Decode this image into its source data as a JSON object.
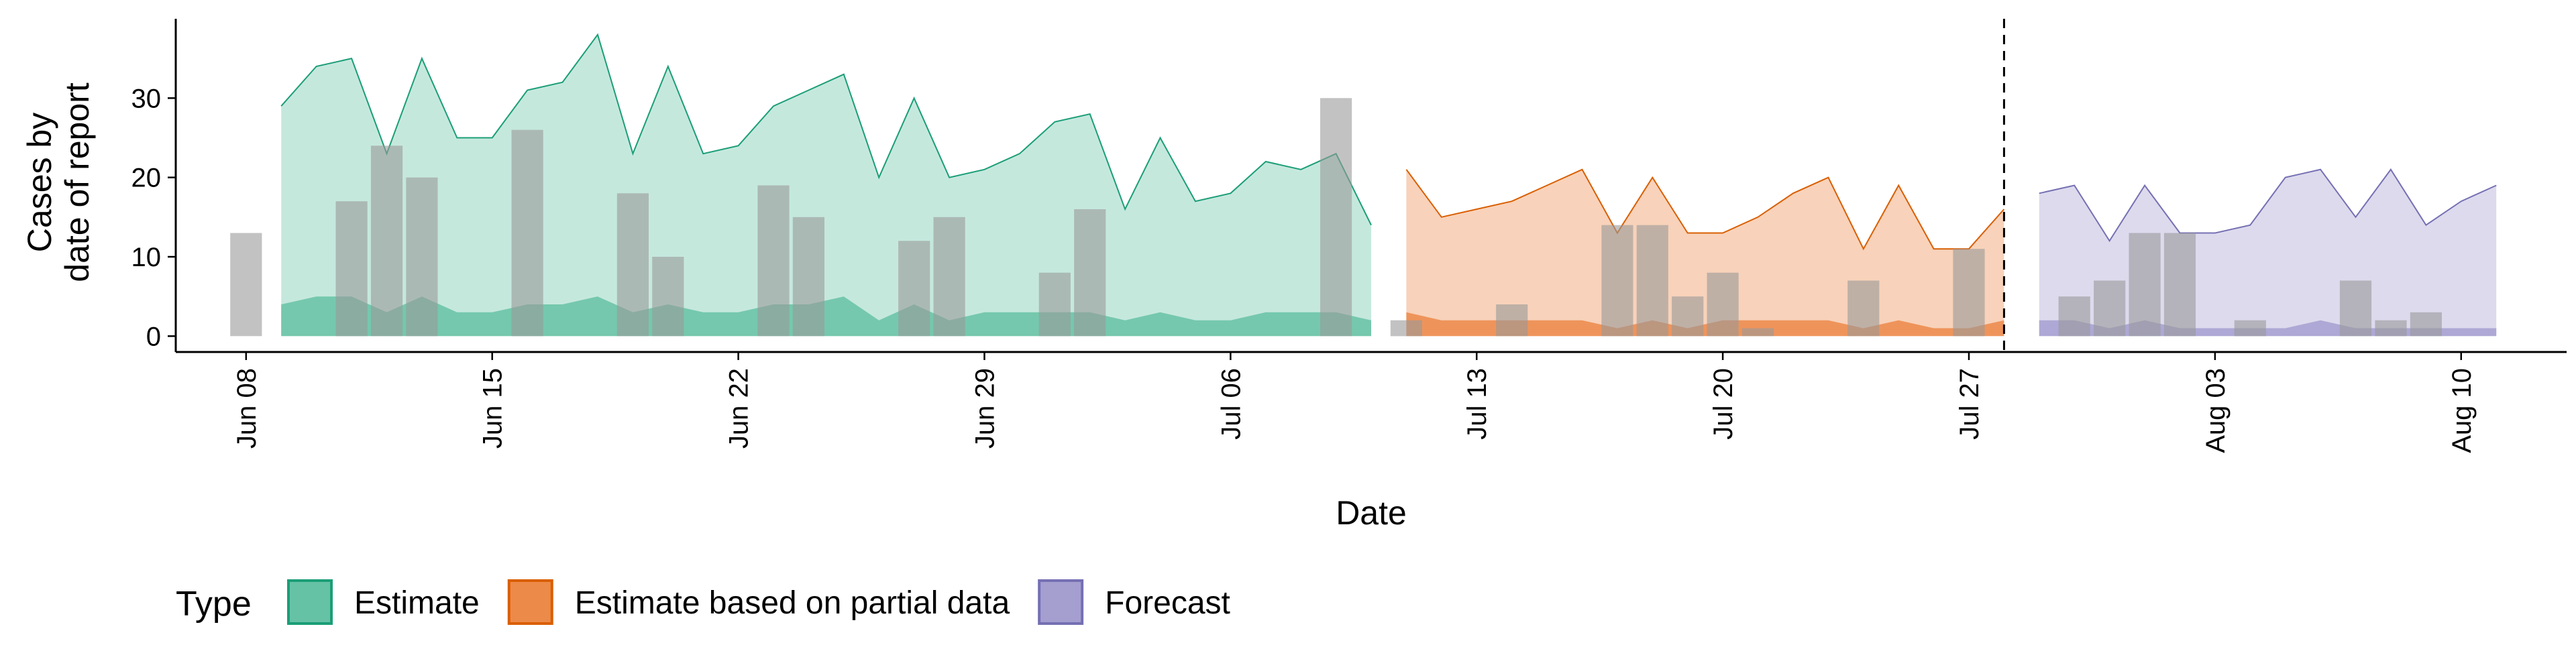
{
  "chart_data": {
    "type": "area",
    "xlabel": "Date",
    "ylabel_lines": [
      "Cases by",
      "date of report"
    ],
    "y_ticks": [
      0,
      10,
      20,
      30
    ],
    "ylim": [
      -2,
      40
    ],
    "xlim": [
      "2020-06-06",
      "2020-08-13"
    ],
    "x_ticks": [
      {
        "date": "2020-06-08",
        "label": "Jun 08"
      },
      {
        "date": "2020-06-15",
        "label": "Jun 15"
      },
      {
        "date": "2020-06-22",
        "label": "Jun 22"
      },
      {
        "date": "2020-06-29",
        "label": "Jun 29"
      },
      {
        "date": "2020-07-06",
        "label": "Jul 06"
      },
      {
        "date": "2020-07-13",
        "label": "Jul 13"
      },
      {
        "date": "2020-07-20",
        "label": "Jul 20"
      },
      {
        "date": "2020-07-27",
        "label": "Jul 27"
      },
      {
        "date": "2020-08-03",
        "label": "Aug 03"
      },
      {
        "date": "2020-08-10",
        "label": "Aug 10"
      }
    ],
    "vline_date": "2020-07-28",
    "legend": {
      "position": "bottom",
      "title": "Type",
      "items": [
        {
          "label": "Estimate",
          "fill": "#66c2a5",
          "stroke": "#1b9e77"
        },
        {
          "label": "Estimate based on partial data",
          "fill": "#ec8a4a",
          "stroke": "#d95f02"
        },
        {
          "label": "Forecast",
          "fill": "#a59fd0",
          "stroke": "#7570b3"
        }
      ]
    },
    "series": [
      {
        "name": "Estimate",
        "start": "2020-06-09",
        "upper90": [
          29,
          34,
          35,
          23,
          35,
          25,
          25,
          31,
          32,
          38,
          23,
          34,
          23,
          24,
          29,
          31,
          33,
          20,
          30,
          20,
          21,
          23,
          27,
          28,
          16,
          25,
          17,
          18,
          22,
          21,
          23,
          14
        ],
        "upper20": [
          4,
          5,
          5,
          3,
          5,
          3,
          3,
          4,
          4,
          5,
          3,
          4,
          3,
          3,
          4,
          4,
          5,
          2,
          4,
          2,
          3,
          3,
          3,
          3,
          2,
          3,
          2,
          2,
          3,
          3,
          3,
          2
        ],
        "lower": [
          0,
          0,
          0,
          0,
          0,
          0,
          0,
          0,
          0,
          0,
          0,
          0,
          0,
          0,
          0,
          0,
          0,
          0,
          0,
          0,
          0,
          0,
          0,
          0,
          0,
          0,
          0,
          0,
          0,
          0,
          0,
          0
        ]
      },
      {
        "name": "Estimate based on partial data",
        "start": "2020-07-11",
        "upper90": [
          21,
          15,
          16,
          17,
          19,
          21,
          13,
          20,
          13,
          13,
          15,
          18,
          20,
          11,
          19,
          11,
          11,
          16
        ],
        "upper20": [
          3,
          2,
          2,
          2,
          2,
          2,
          1,
          2,
          1,
          2,
          2,
          2,
          2,
          1,
          2,
          1,
          1,
          2
        ],
        "lower": [
          0,
          0,
          0,
          0,
          0,
          0,
          0,
          0,
          0,
          0,
          0,
          0,
          0,
          0,
          0,
          0,
          0,
          0
        ]
      },
      {
        "name": "Forecast",
        "start": "2020-07-29",
        "upper90": [
          18,
          19,
          12,
          19,
          13,
          13,
          14,
          20,
          21,
          15,
          21,
          14,
          17,
          19
        ],
        "upper20": [
          2,
          2,
          1,
          2,
          1,
          1,
          1,
          1,
          2,
          1,
          1,
          1,
          1,
          1
        ],
        "lower": [
          0,
          0,
          0,
          0,
          0,
          0,
          0,
          0,
          0,
          0,
          0,
          0,
          0,
          0
        ]
      }
    ],
    "bars": {
      "start": "2020-06-08",
      "values": [
        13,
        0,
        0,
        17,
        24,
        20,
        0,
        0,
        26,
        0,
        0,
        18,
        10,
        0,
        0,
        19,
        15,
        0,
        0,
        12,
        15,
        0,
        0,
        8,
        16,
        0,
        0,
        0,
        0,
        0,
        0,
        30,
        0,
        2,
        0,
        0,
        4,
        0,
        0,
        14,
        14,
        5,
        8,
        1,
        0,
        0,
        7,
        0,
        0,
        11,
        0,
        0,
        5,
        7,
        13,
        13,
        0,
        2,
        0,
        0,
        7,
        2,
        3
      ]
    }
  }
}
